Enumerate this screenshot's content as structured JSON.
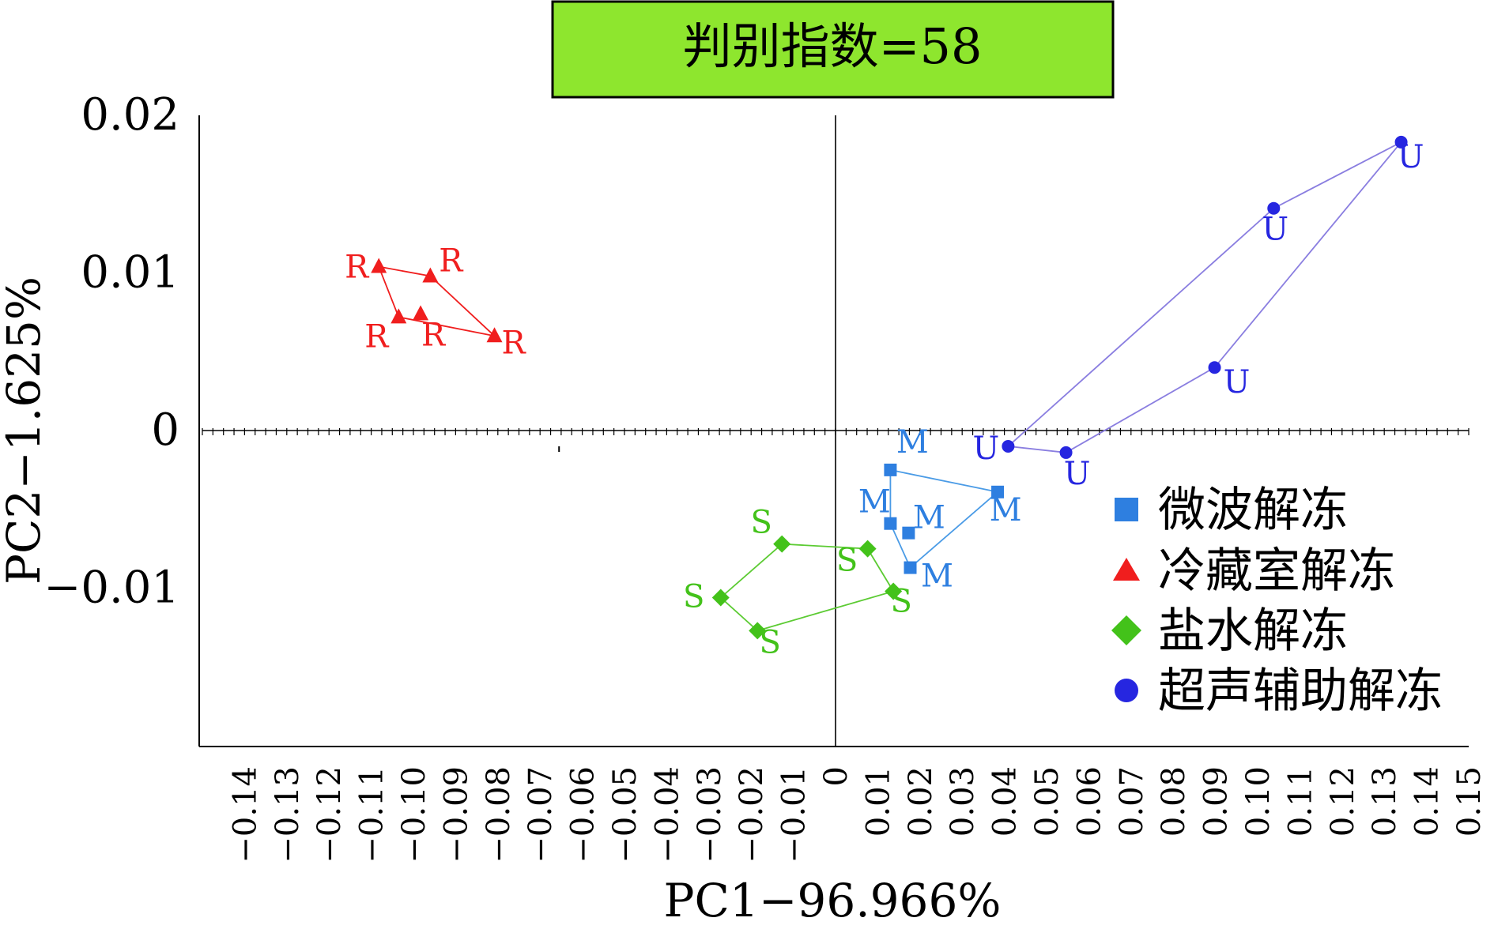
{
  "chart_data": {
    "type": "scatter",
    "title": "判别指数=58",
    "title_bg": "#8ee62e",
    "xlabel": "PC1−96.966%",
    "ylabel": "PC2−1.625%",
    "xlim": [
      -0.15,
      0.15
    ],
    "ylim": [
      -0.02,
      0.02
    ],
    "x_ticks": [
      "−0.14",
      "−0.13",
      "−0.12",
      "−0.11",
      "−0.10",
      "−0.09",
      "−0.08",
      "−0.07",
      "−0.06",
      "−0.05",
      "−0.04",
      "−0.03",
      "−0.02",
      "−0.01",
      "0",
      "0.01",
      "0.02",
      "0.03",
      "0.04",
      "0.05",
      "0.06",
      "0.07",
      "0.08",
      "0.09",
      "0.10",
      "0.11",
      "0.12",
      "0.13",
      "0.14",
      "0.15"
    ],
    "x_tick_values": [
      -0.14,
      -0.13,
      -0.12,
      -0.11,
      -0.1,
      -0.09,
      -0.08,
      -0.07,
      -0.06,
      -0.05,
      -0.04,
      -0.03,
      -0.02,
      -0.01,
      0,
      0.01,
      0.02,
      0.03,
      0.04,
      0.05,
      0.06,
      0.07,
      0.08,
      0.09,
      0.1,
      0.11,
      0.12,
      0.13,
      0.14,
      0.15
    ],
    "y_ticks": [
      "0.02",
      "0.01",
      "0",
      "−0.01"
    ],
    "y_tick_values": [
      0.02,
      0.01,
      0,
      -0.01
    ],
    "legend": "right",
    "series": [
      {
        "name": "微波解冻",
        "label": "M",
        "marker": "square",
        "color": "#2e7fe0",
        "hull_color": "#4a9be6",
        "points": [
          [
            0.013,
            -0.0025
          ],
          [
            0.0384,
            -0.0039
          ],
          [
            0.0177,
            -0.0087
          ],
          [
            0.013,
            -0.0059
          ],
          [
            0.0173,
            -0.0065
          ]
        ],
        "hull": [
          0,
          1,
          2,
          3
        ]
      },
      {
        "name": "冷藏室解冻",
        "label": "R",
        "marker": "triangle",
        "color": "#f01e1e",
        "hull_color": "#f01e1e",
        "points": [
          [
            -0.1082,
            0.0104
          ],
          [
            -0.096,
            0.0098
          ],
          [
            -0.0808,
            0.006
          ],
          [
            -0.1035,
            0.0072
          ],
          [
            -0.0983,
            0.0074
          ]
        ],
        "hull": [
          0,
          1,
          2,
          3
        ]
      },
      {
        "name": "盐水解冻",
        "label": "S",
        "marker": "diamond",
        "color": "#43c21a",
        "hull_color": "#5ccb33",
        "points": [
          [
            -0.0127,
            -0.0072
          ],
          [
            0.0076,
            -0.0075
          ],
          [
            0.0137,
            -0.0102
          ],
          [
            -0.0185,
            -0.0127
          ],
          [
            -0.0272,
            -0.0106
          ]
        ],
        "hull": [
          0,
          1,
          2,
          3,
          4
        ]
      },
      {
        "name": "超声辅助解冻",
        "label": "U",
        "marker": "circle",
        "color": "#2626e0",
        "hull_color": "#8a7ee0",
        "points": [
          [
            0.134,
            0.0183
          ],
          [
            0.1038,
            0.0141
          ],
          [
            0.0898,
            0.004
          ],
          [
            0.0546,
            -0.0014
          ],
          [
            0.0409,
            -0.001
          ]
        ],
        "hull": [
          0,
          2,
          3,
          4,
          1
        ]
      }
    ]
  }
}
